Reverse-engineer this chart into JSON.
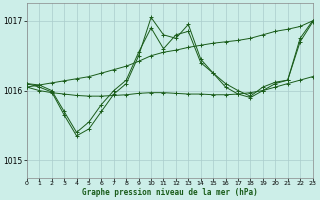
{
  "title": "Graphe pression niveau de la mer (hPa)",
  "bg_color": "#cceee8",
  "grid_color": "#aacccc",
  "line_color": "#1a5c1a",
  "xlim": [
    0,
    23
  ],
  "ylim": [
    1014.75,
    1017.25
  ],
  "yticks": [
    1015,
    1016,
    1017
  ],
  "xticks": [
    0,
    1,
    2,
    3,
    4,
    5,
    6,
    7,
    8,
    9,
    10,
    11,
    12,
    13,
    14,
    15,
    16,
    17,
    18,
    19,
    20,
    21,
    22,
    23
  ],
  "series": [
    {
      "x": [
        0,
        1,
        2,
        3,
        4,
        5,
        6,
        7,
        8,
        9,
        10,
        11,
        12,
        13,
        14,
        15,
        16,
        17,
        18,
        19,
        20,
        21,
        22,
        23
      ],
      "y": [
        1016.05,
        1016.08,
        1016.11,
        1016.14,
        1016.17,
        1016.2,
        1016.25,
        1016.3,
        1016.35,
        1016.42,
        1016.5,
        1016.55,
        1016.58,
        1016.62,
        1016.65,
        1016.68,
        1016.7,
        1016.72,
        1016.75,
        1016.8,
        1016.85,
        1016.88,
        1016.92,
        1017.0
      ]
    },
    {
      "x": [
        0,
        1,
        2,
        3,
        4,
        5,
        6,
        7,
        8,
        9,
        10,
        11,
        12,
        13,
        14,
        15,
        16,
        17,
        18,
        19,
        20,
        21,
        22,
        23
      ],
      "y": [
        1016.05,
        1016.0,
        1015.97,
        1015.95,
        1015.93,
        1015.92,
        1015.92,
        1015.93,
        1015.94,
        1015.96,
        1015.97,
        1015.97,
        1015.96,
        1015.95,
        1015.95,
        1015.94,
        1015.94,
        1015.95,
        1015.97,
        1016.0,
        1016.05,
        1016.1,
        1016.15,
        1016.2
      ]
    },
    {
      "x": [
        0,
        1,
        2,
        3,
        4,
        5,
        6,
        7,
        8,
        9,
        10,
        11,
        12,
        13,
        14,
        15,
        16,
        17,
        18,
        19,
        20,
        21,
        22,
        23
      ],
      "y": [
        1016.1,
        1016.05,
        1015.98,
        1015.65,
        1015.35,
        1015.45,
        1015.7,
        1015.95,
        1016.1,
        1016.5,
        1017.05,
        1016.8,
        1016.75,
        1016.95,
        1016.45,
        1016.25,
        1016.05,
        1015.95,
        1015.9,
        1016.0,
        1016.1,
        1016.15,
        1016.75,
        1017.0
      ]
    },
    {
      "x": [
        0,
        1,
        2,
        3,
        4,
        5,
        6,
        7,
        8,
        9,
        10,
        11,
        12,
        13,
        14,
        15,
        16,
        17,
        18,
        19,
        20,
        21,
        22,
        23
      ],
      "y": [
        1016.1,
        1016.08,
        1016.0,
        1015.7,
        1015.4,
        1015.55,
        1015.8,
        1016.0,
        1016.15,
        1016.55,
        1016.9,
        1016.6,
        1016.8,
        1016.85,
        1016.4,
        1016.25,
        1016.1,
        1016.0,
        1015.92,
        1016.05,
        1016.12,
        1016.15,
        1016.7,
        1016.98
      ]
    }
  ]
}
